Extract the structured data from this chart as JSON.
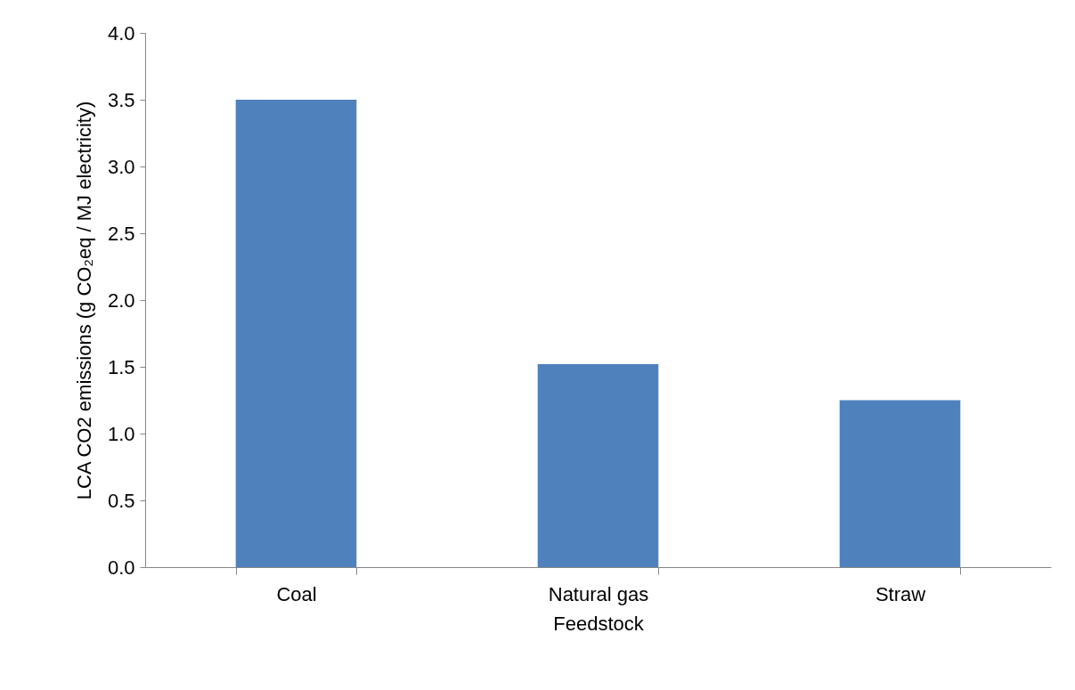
{
  "chart_data": {
    "type": "bar",
    "xlabel": "Feedstock",
    "ylabel": "LCA CO2 emissions (g CO₂eq / MJ electricity)",
    "categories": [
      "Coal",
      "Natural gas",
      "Straw"
    ],
    "values": [
      3.5,
      1.52,
      1.25
    ],
    "color": "#4f81bd",
    "ylim": [
      0,
      4
    ],
    "yticks": [
      {
        "value": 0,
        "label": "0.0"
      },
      {
        "value": 0.5,
        "label": "0.5"
      },
      {
        "value": 1,
        "label": "1.0"
      },
      {
        "value": 1.5,
        "label": "1.5"
      },
      {
        "value": 2,
        "label": "2.0"
      },
      {
        "value": 2.5,
        "label": "2.5"
      },
      {
        "value": 3,
        "label": "3.0"
      },
      {
        "value": 3.5,
        "label": "3.5"
      },
      {
        "value": 4,
        "label": "4.0"
      }
    ],
    "grid": false
  }
}
